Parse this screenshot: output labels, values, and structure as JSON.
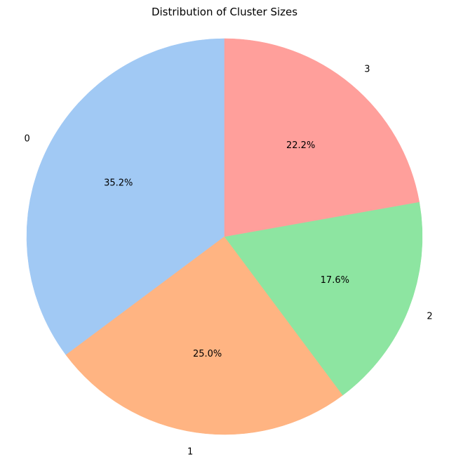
{
  "chart_data": {
    "type": "pie",
    "title": "Distribution of Cluster Sizes",
    "categories": [
      "0",
      "1",
      "2",
      "3"
    ],
    "values": [
      35.2,
      25.0,
      17.6,
      22.2
    ],
    "percent_labels": [
      "35.2%",
      "25.0%",
      "17.6%",
      "22.2%"
    ],
    "colors": [
      "#a1c9f4",
      "#ffb482",
      "#8de5a1",
      "#ff9f9b"
    ],
    "start_angle_deg": 90,
    "direction": "counterclockwise",
    "legend": "none"
  }
}
